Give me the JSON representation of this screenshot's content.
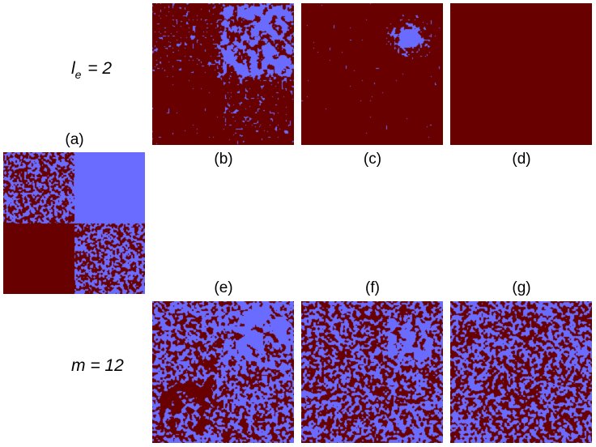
{
  "colors": {
    "red_phase": "#680000",
    "blue_phase": "#6a6cff"
  },
  "rows": {
    "top": {
      "label_main": "l",
      "label_sub": "e",
      "label_rest": " = 2"
    },
    "bottom": {
      "label": "m = 12"
    }
  },
  "panels": {
    "a": {
      "label": "(a)",
      "pattern": "initial-four-quadrants"
    },
    "b": {
      "label": "(b)",
      "pattern": "blue-square-top-right-with-red-surroundings"
    },
    "c": {
      "label": "(c)",
      "pattern": "small-blue-blob-in-red"
    },
    "d": {
      "label": "(d)",
      "pattern": "all-red"
    },
    "e": {
      "label": "(e)",
      "pattern": "mixed-with-blue-square-and-red-square"
    },
    "f": {
      "label": "(f)",
      "pattern": "mixed-with-small-blue-square"
    },
    "g": {
      "label": "(g)",
      "pattern": "fully-mixed"
    }
  }
}
